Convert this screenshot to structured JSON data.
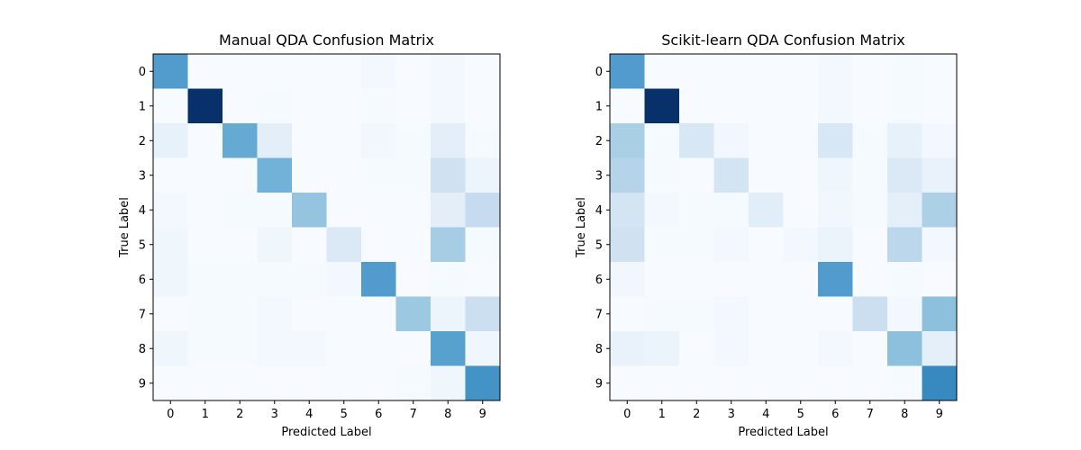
{
  "chart_data": [
    {
      "type": "heatmap",
      "title": "Manual QDA Confusion Matrix",
      "xlabel": "Predicted Label",
      "ylabel": "True Label",
      "x_ticks": [
        "0",
        "1",
        "2",
        "3",
        "4",
        "5",
        "6",
        "7",
        "8",
        "9"
      ],
      "y_ticks": [
        "0",
        "1",
        "2",
        "3",
        "4",
        "5",
        "6",
        "7",
        "8",
        "9"
      ],
      "colormap": "Blues",
      "max_value": 100,
      "matrix": [
        [
          58,
          0,
          0,
          0,
          0,
          0,
          2,
          0,
          2,
          0
        ],
        [
          0,
          100,
          0,
          1,
          0,
          0,
          1,
          0,
          2,
          0
        ],
        [
          8,
          0,
          52,
          10,
          0,
          0,
          3,
          1,
          10,
          1
        ],
        [
          0,
          0,
          0,
          48,
          0,
          0,
          1,
          1,
          20,
          5
        ],
        [
          2,
          0,
          1,
          1,
          40,
          0,
          0,
          0,
          10,
          25
        ],
        [
          4,
          0,
          0,
          4,
          0,
          14,
          0,
          0,
          35,
          1
        ],
        [
          4,
          1,
          1,
          1,
          1,
          2,
          58,
          0,
          1,
          0
        ],
        [
          0,
          1,
          1,
          2,
          0,
          0,
          0,
          38,
          5,
          22
        ],
        [
          4,
          1,
          1,
          2,
          2,
          0,
          0,
          0,
          56,
          4
        ],
        [
          0,
          0,
          0,
          0,
          0,
          0,
          0,
          1,
          4,
          62
        ]
      ]
    },
    {
      "type": "heatmap",
      "title": "Scikit-learn QDA Confusion Matrix",
      "xlabel": "Predicted Label",
      "ylabel": "True Label",
      "x_ticks": [
        "0",
        "1",
        "2",
        "3",
        "4",
        "5",
        "6",
        "7",
        "8",
        "9"
      ],
      "y_ticks": [
        "0",
        "1",
        "2",
        "3",
        "4",
        "5",
        "6",
        "7",
        "8",
        "9"
      ],
      "colormap": "Blues",
      "max_value": 100,
      "matrix": [
        [
          58,
          0,
          0,
          0,
          0,
          0,
          2,
          0,
          1,
          0
        ],
        [
          0,
          100,
          0,
          0,
          0,
          0,
          2,
          0,
          1,
          0
        ],
        [
          34,
          1,
          16,
          3,
          0,
          0,
          16,
          1,
          8,
          2
        ],
        [
          30,
          1,
          0,
          18,
          0,
          0,
          4,
          1,
          14,
          7
        ],
        [
          18,
          2,
          1,
          1,
          11,
          0,
          3,
          1,
          9,
          33
        ],
        [
          20,
          1,
          1,
          2,
          0,
          2,
          6,
          0,
          28,
          2
        ],
        [
          3,
          0,
          0,
          0,
          0,
          0,
          58,
          0,
          1,
          0
        ],
        [
          0,
          1,
          1,
          2,
          0,
          0,
          0,
          22,
          2,
          42
        ],
        [
          7,
          6,
          0,
          2,
          0,
          0,
          2,
          0,
          42,
          9
        ],
        [
          0,
          0,
          0,
          0,
          0,
          0,
          0,
          0,
          1,
          66
        ]
      ]
    }
  ]
}
